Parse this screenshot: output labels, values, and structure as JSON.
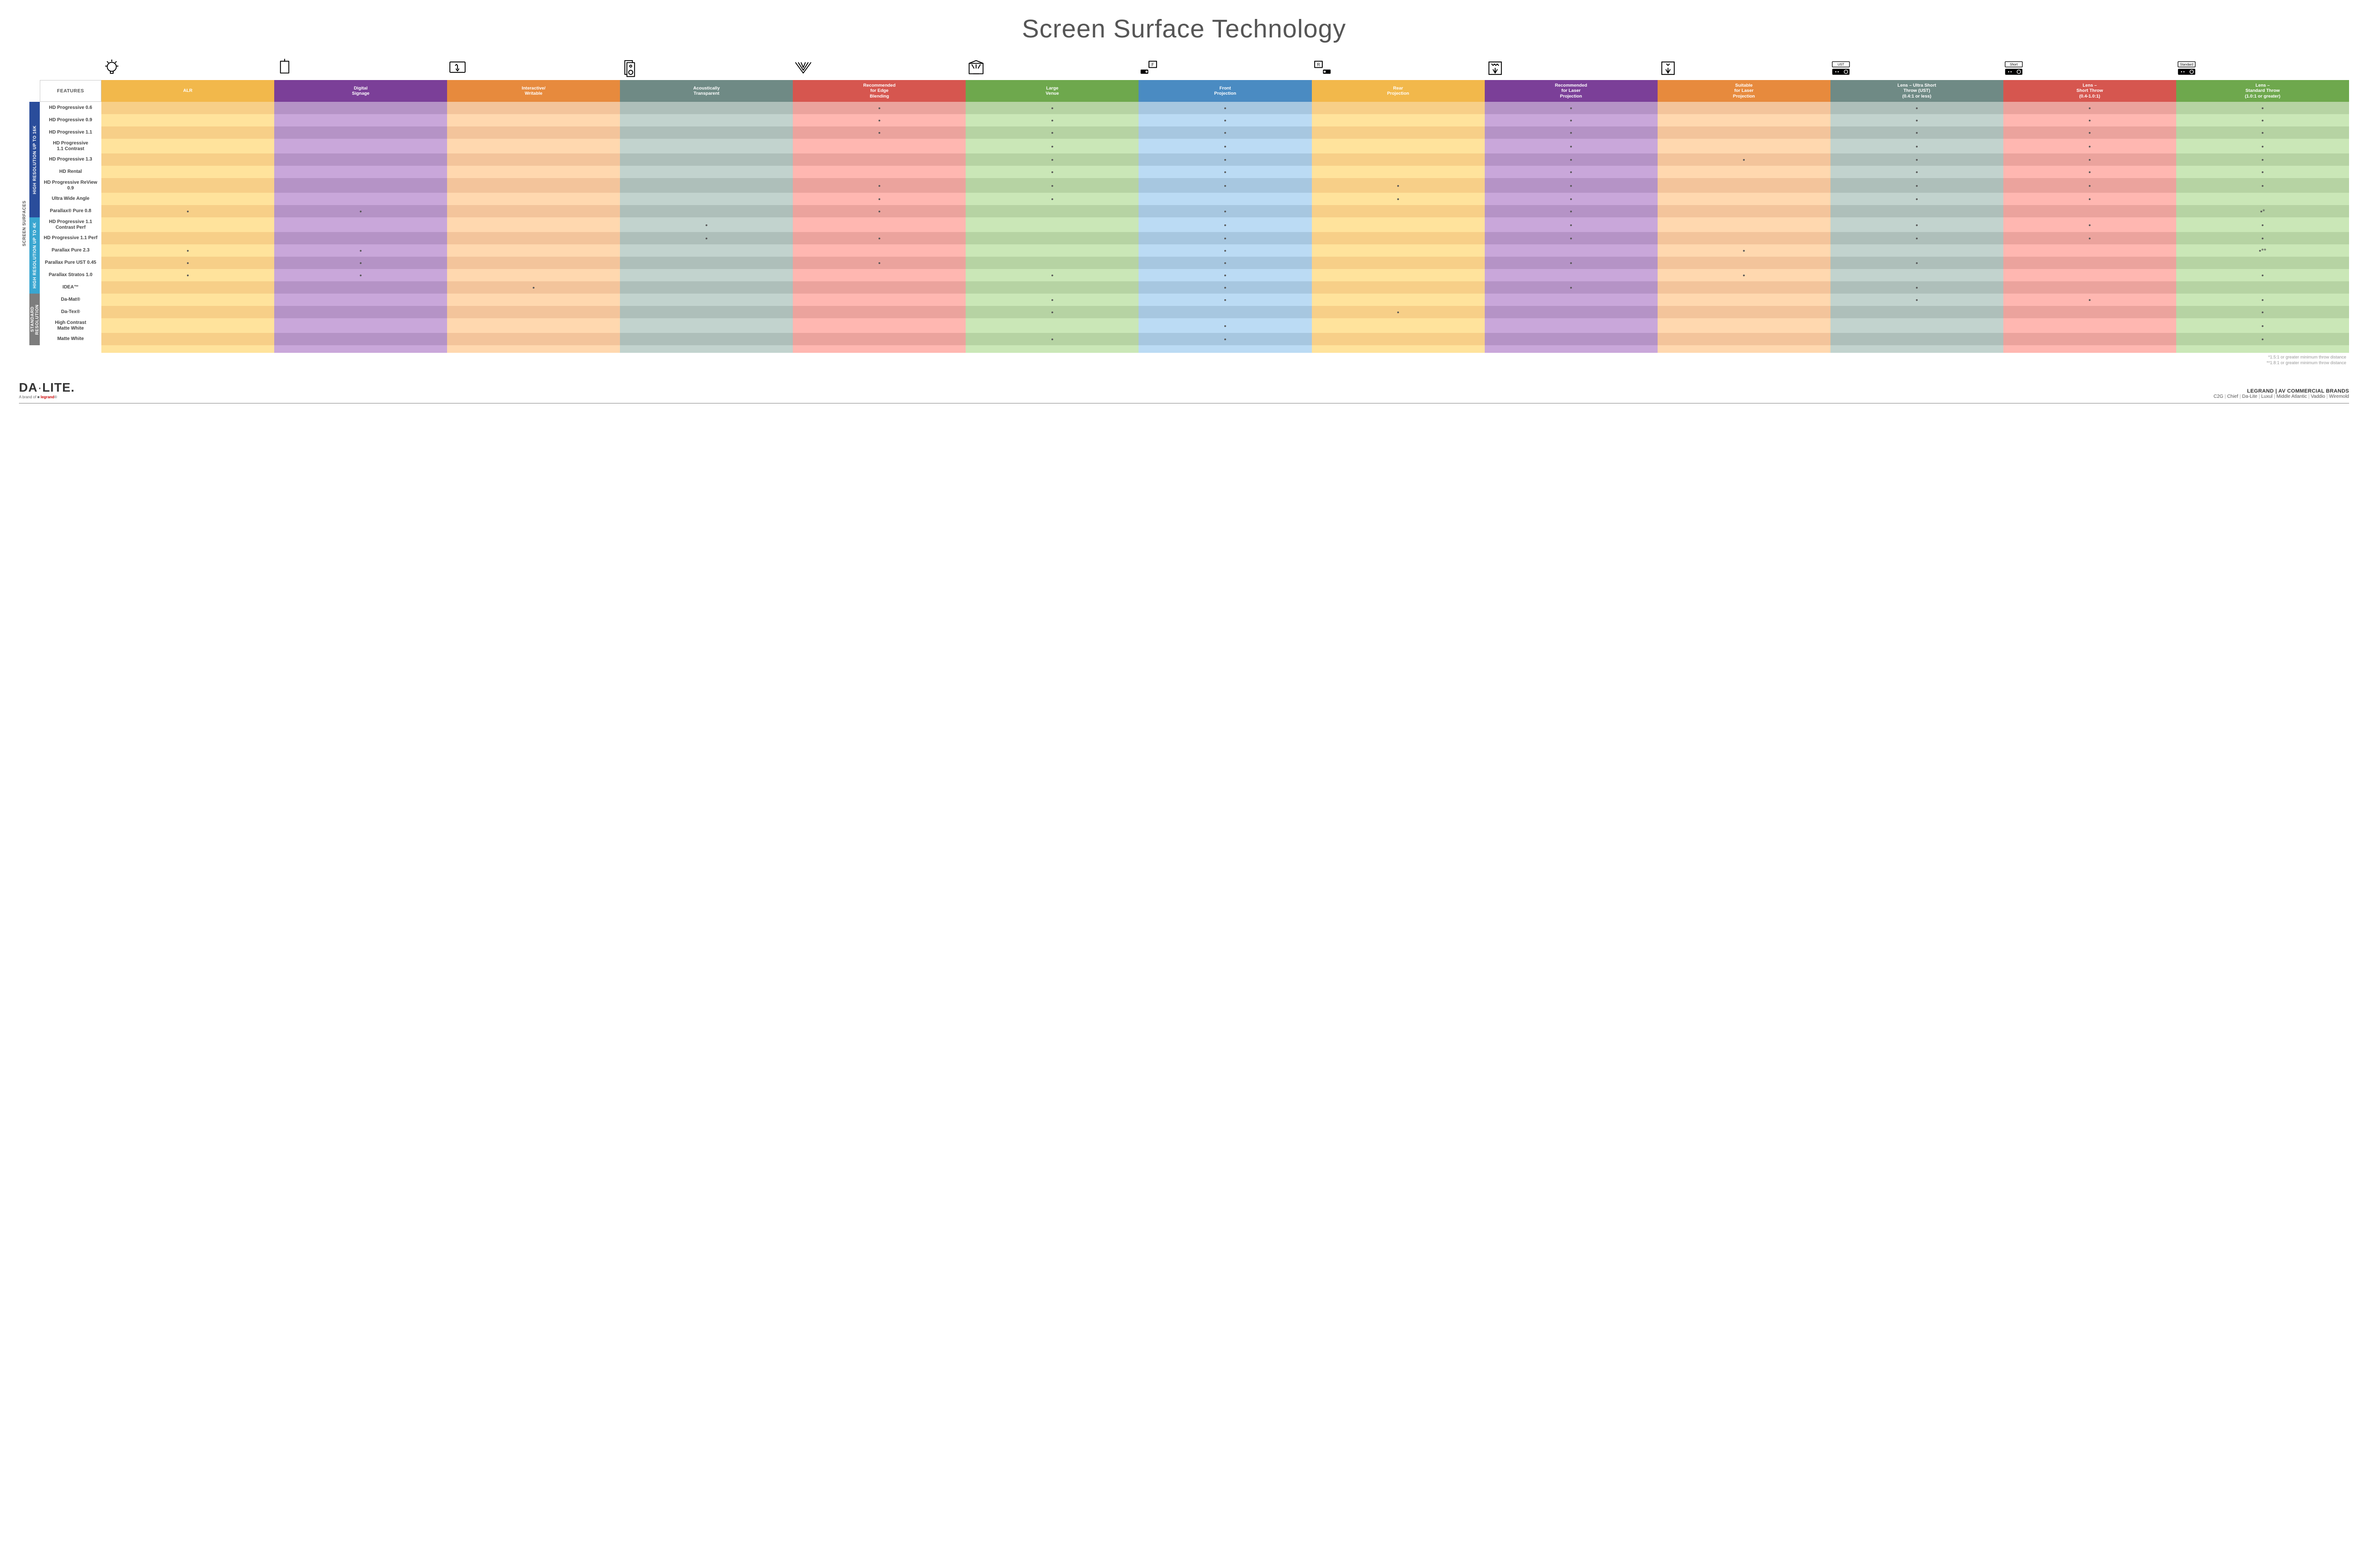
{
  "title": "Screen Surface Technology",
  "features_label": "FEATURES",
  "outer_label": "SCREEN SURFACES",
  "columns": [
    {
      "key": "alr",
      "label": "ALR",
      "color": "#f2b84b",
      "alt": "#f7cf88",
      "icon": "bulb"
    },
    {
      "key": "signage",
      "label": "Digital\nSignage",
      "color": "#7b3f98",
      "alt": "#b593c6",
      "icon": "signage"
    },
    {
      "key": "interactive",
      "label": "Interactive/\nWritable",
      "color": "#e78a3d",
      "alt": "#f3c49b",
      "icon": "touch"
    },
    {
      "key": "acoustic",
      "label": "Acoustically\nTransparent",
      "color": "#6f8a85",
      "alt": "#aebfba",
      "icon": "speaker"
    },
    {
      "key": "edge",
      "label": "Recommended\nfor Edge\nBlending",
      "color": "#d6564f",
      "alt": "#eba39d",
      "icon": "edge"
    },
    {
      "key": "venue",
      "label": "Large\nVenue",
      "color": "#6ea84d",
      "alt": "#b6d3a3",
      "icon": "venue"
    },
    {
      "key": "front",
      "label": "Front\nProjection",
      "color": "#4a8bc2",
      "alt": "#a7c7e0",
      "icon": "front"
    },
    {
      "key": "rear",
      "label": "Rear\nProjection",
      "color": "#f2b84b",
      "alt": "#f7cf88",
      "icon": "rear"
    },
    {
      "key": "reclaser",
      "label": "Recommended\nfor Laser\nProjection",
      "color": "#7b3f98",
      "alt": "#b593c6",
      "icon": "laser-rec"
    },
    {
      "key": "suitlaser",
      "label": "Suitable\nfor Laser\nProjection",
      "color": "#e78a3d",
      "alt": "#f3c49b",
      "icon": "laser-suit"
    },
    {
      "key": "ust",
      "label": "Lens – Ultra Short\nThrow (UST)\n(0.4:1 or less)",
      "color": "#6f8a85",
      "alt": "#aebfba",
      "icon": "proj-ust"
    },
    {
      "key": "short",
      "label": "Lens –\nShort Throw\n(0.4-1.0:1)",
      "color": "#d6564f",
      "alt": "#eba39d",
      "icon": "proj-short"
    },
    {
      "key": "std",
      "label": "Lens –\nStandard Throw\n(1.0:1 or greater)",
      "color": "#6ea84d",
      "alt": "#b6d3a3",
      "icon": "proj-std"
    }
  ],
  "groups": [
    {
      "label": "HIGH RESOLUTION UP TO 16K",
      "color": "#2a4d9b",
      "rows": [
        {
          "name": "HD Progressive 0.6",
          "dots": {
            "edge": "•",
            "venue": "•",
            "front": "•",
            "reclaser": "•",
            "ust": "•",
            "short": "•",
            "std": "•"
          }
        },
        {
          "name": "HD Progressive 0.9",
          "dots": {
            "edge": "•",
            "venue": "•",
            "front": "•",
            "reclaser": "•",
            "ust": "•",
            "short": "•",
            "std": "•"
          }
        },
        {
          "name": "HD Progressive 1.1",
          "dots": {
            "edge": "•",
            "venue": "•",
            "front": "•",
            "reclaser": "•",
            "ust": "•",
            "short": "•",
            "std": "•"
          }
        },
        {
          "name": "HD Progressive\n1.1 Contrast",
          "dots": {
            "venue": "•",
            "front": "•",
            "reclaser": "•",
            "ust": "•",
            "short": "•",
            "std": "•"
          }
        },
        {
          "name": "HD Progressive 1.3",
          "dots": {
            "venue": "•",
            "front": "•",
            "reclaser": "•",
            "suitlaser": "•",
            "ust": "•",
            "short": "•",
            "std": "•"
          }
        },
        {
          "name": "HD Rental",
          "dots": {
            "venue": "•",
            "front": "•",
            "reclaser": "•",
            "ust": "•",
            "short": "•",
            "std": "•"
          }
        },
        {
          "name": "HD Progressive ReView 0.9",
          "dots": {
            "edge": "•",
            "venue": "•",
            "front": "•",
            "rear": "•",
            "reclaser": "•",
            "ust": "•",
            "short": "•",
            "std": "•"
          }
        },
        {
          "name": "Ultra Wide Angle",
          "dots": {
            "edge": "•",
            "venue": "•",
            "rear": "•",
            "reclaser": "•",
            "ust": "•",
            "short": "•"
          }
        },
        {
          "name": "Parallax® Pure 0.8",
          "dots": {
            "alr": "•",
            "signage": "•",
            "edge": "•",
            "front": "•",
            "reclaser": "•",
            "std": "•*"
          }
        }
      ]
    },
    {
      "label": "HIGH RESOLUTION UP TO 4K",
      "color": "#3aa6d0",
      "rows": [
        {
          "name": "HD Progressive 1.1\nContrast Perf",
          "dots": {
            "acoustic": "•",
            "front": "•",
            "reclaser": "•",
            "ust": "•",
            "short": "•",
            "std": "•"
          }
        },
        {
          "name": "HD Progressive 1.1 Perf",
          "dots": {
            "acoustic": "•",
            "edge": "•",
            "front": "•",
            "reclaser": "•",
            "ust": "•",
            "short": "•",
            "std": "•"
          }
        },
        {
          "name": "Parallax Pure 2.3",
          "dots": {
            "alr": "•",
            "signage": "•",
            "front": "•",
            "suitlaser": "•",
            "std": "•**"
          }
        },
        {
          "name": "Parallax Pure UST 0.45",
          "dots": {
            "alr": "•",
            "signage": "•",
            "edge": "•",
            "front": "•",
            "reclaser": "•",
            "ust": "•"
          }
        },
        {
          "name": "Parallax Stratos 1.0",
          "dots": {
            "alr": "•",
            "signage": "•",
            "venue": "•",
            "front": "•",
            "suitlaser": "•",
            "std": "•"
          }
        },
        {
          "name": "IDEA™",
          "dots": {
            "interactive": "•",
            "front": "•",
            "reclaser": "•",
            "ust": "•"
          }
        }
      ]
    },
    {
      "label": "STANDARD\nRESOLUTION",
      "color": "#7d7d7d",
      "rows": [
        {
          "name": "Da-Mat®",
          "dots": {
            "venue": "•",
            "front": "•",
            "ust": "•",
            "short": "•",
            "std": "•"
          }
        },
        {
          "name": "Da-Tex®",
          "dots": {
            "venue": "•",
            "rear": "•",
            "std": "•"
          }
        },
        {
          "name": "High Contrast\nMatte White",
          "dots": {
            "front": "•",
            "std": "•"
          }
        },
        {
          "name": "Matte White",
          "dots": {
            "venue": "•",
            "front": "•",
            "std": "•"
          }
        }
      ]
    }
  ],
  "footnotes": [
    "*1.5:1 or greater minimum throw distance",
    "**1.8:1 or greater minimum throw distance"
  ],
  "footer": {
    "logo_main": "DA",
    "logo_sep": "·",
    "logo_sub": "LITE",
    "logo_dot": ".",
    "tagline_pre": "A brand of ",
    "tagline_brand": "legrand",
    "brands_title": "LEGRAND | AV COMMERCIAL BRANDS",
    "brands": [
      "C2G",
      "Chief",
      "Da-Lite",
      "Luxul",
      "Middle Atlantic",
      "Vaddio",
      "Wiremold"
    ]
  }
}
